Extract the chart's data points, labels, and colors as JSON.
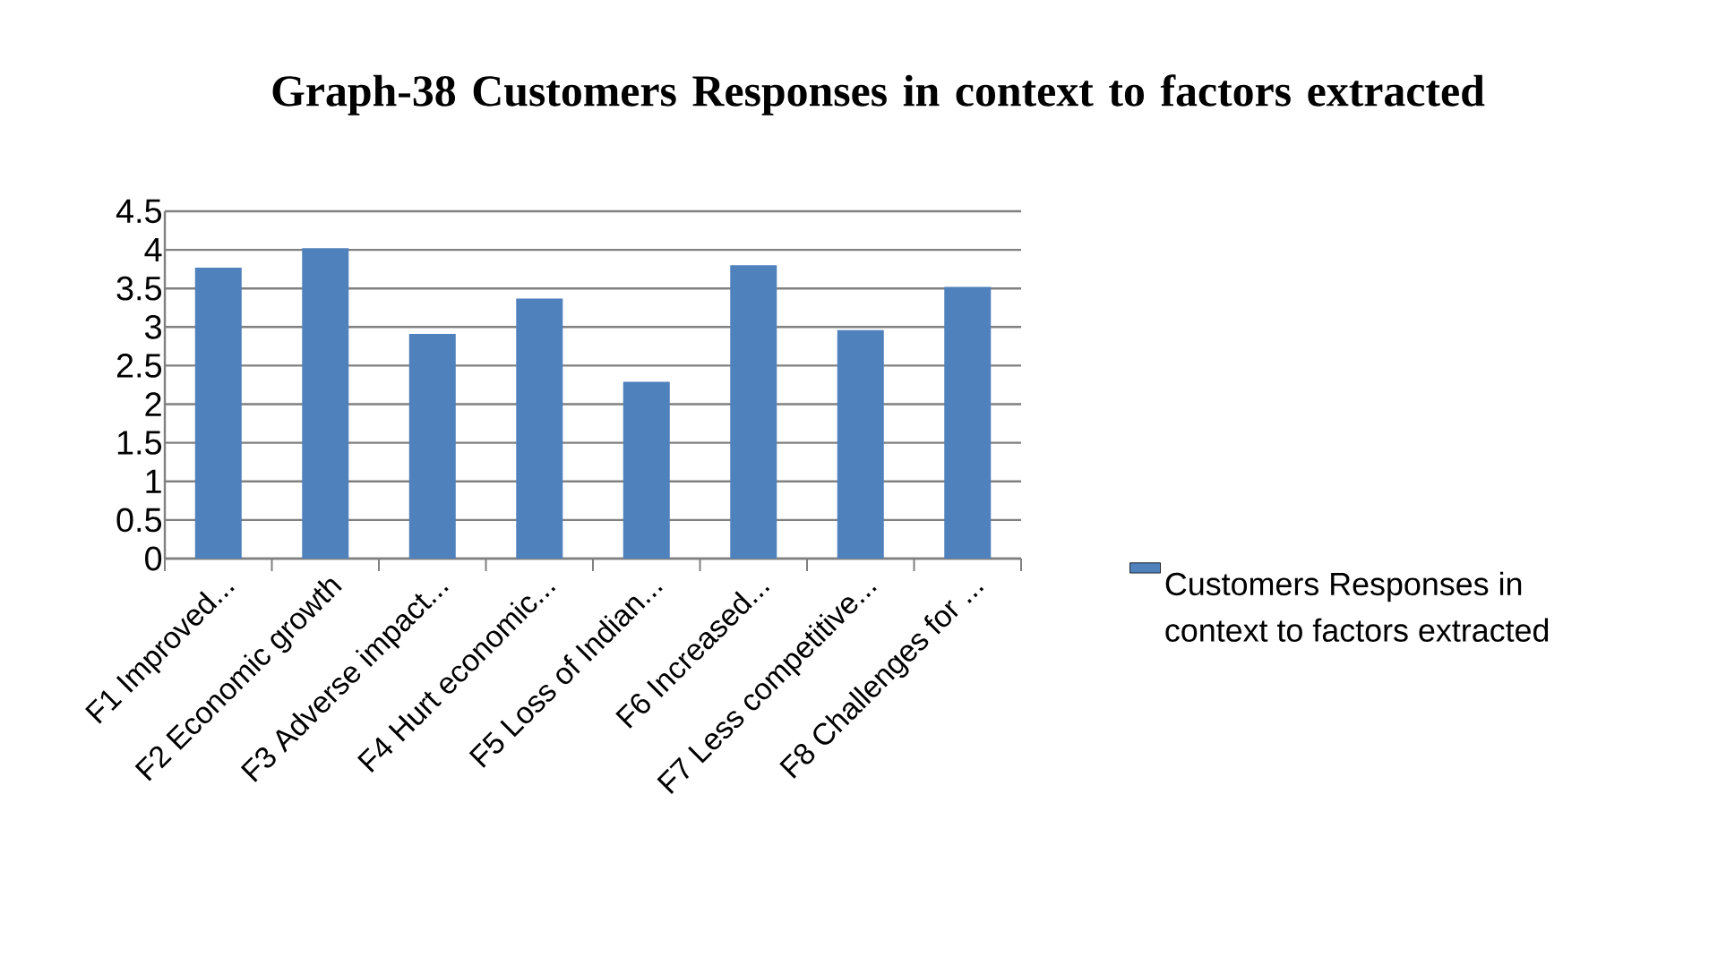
{
  "chart_data": {
    "type": "bar",
    "title": "Graph-38 Customers Responses in context to factors extracted",
    "categories": [
      "F1 Improved...",
      "F2 Economic growth",
      "F3 Adverse impact...",
      "F4 Hurt economic...",
      "F5 Loss of Indian...",
      "F6 Increased...",
      "F7 Less competitive...",
      "F8 Challenges for ..."
    ],
    "series": [
      {
        "name": "Customers Responses in context to factors extracted",
        "color": "#4f81bd",
        "values": [
          3.77,
          4.02,
          2.91,
          3.37,
          2.29,
          3.8,
          2.96,
          3.52
        ]
      }
    ],
    "ylim": [
      0,
      4.5
    ],
    "yticks": [
      0,
      0.5,
      1,
      1.5,
      2,
      2.5,
      3,
      3.5,
      4,
      4.5
    ],
    "grid": "y",
    "legend": "right"
  }
}
